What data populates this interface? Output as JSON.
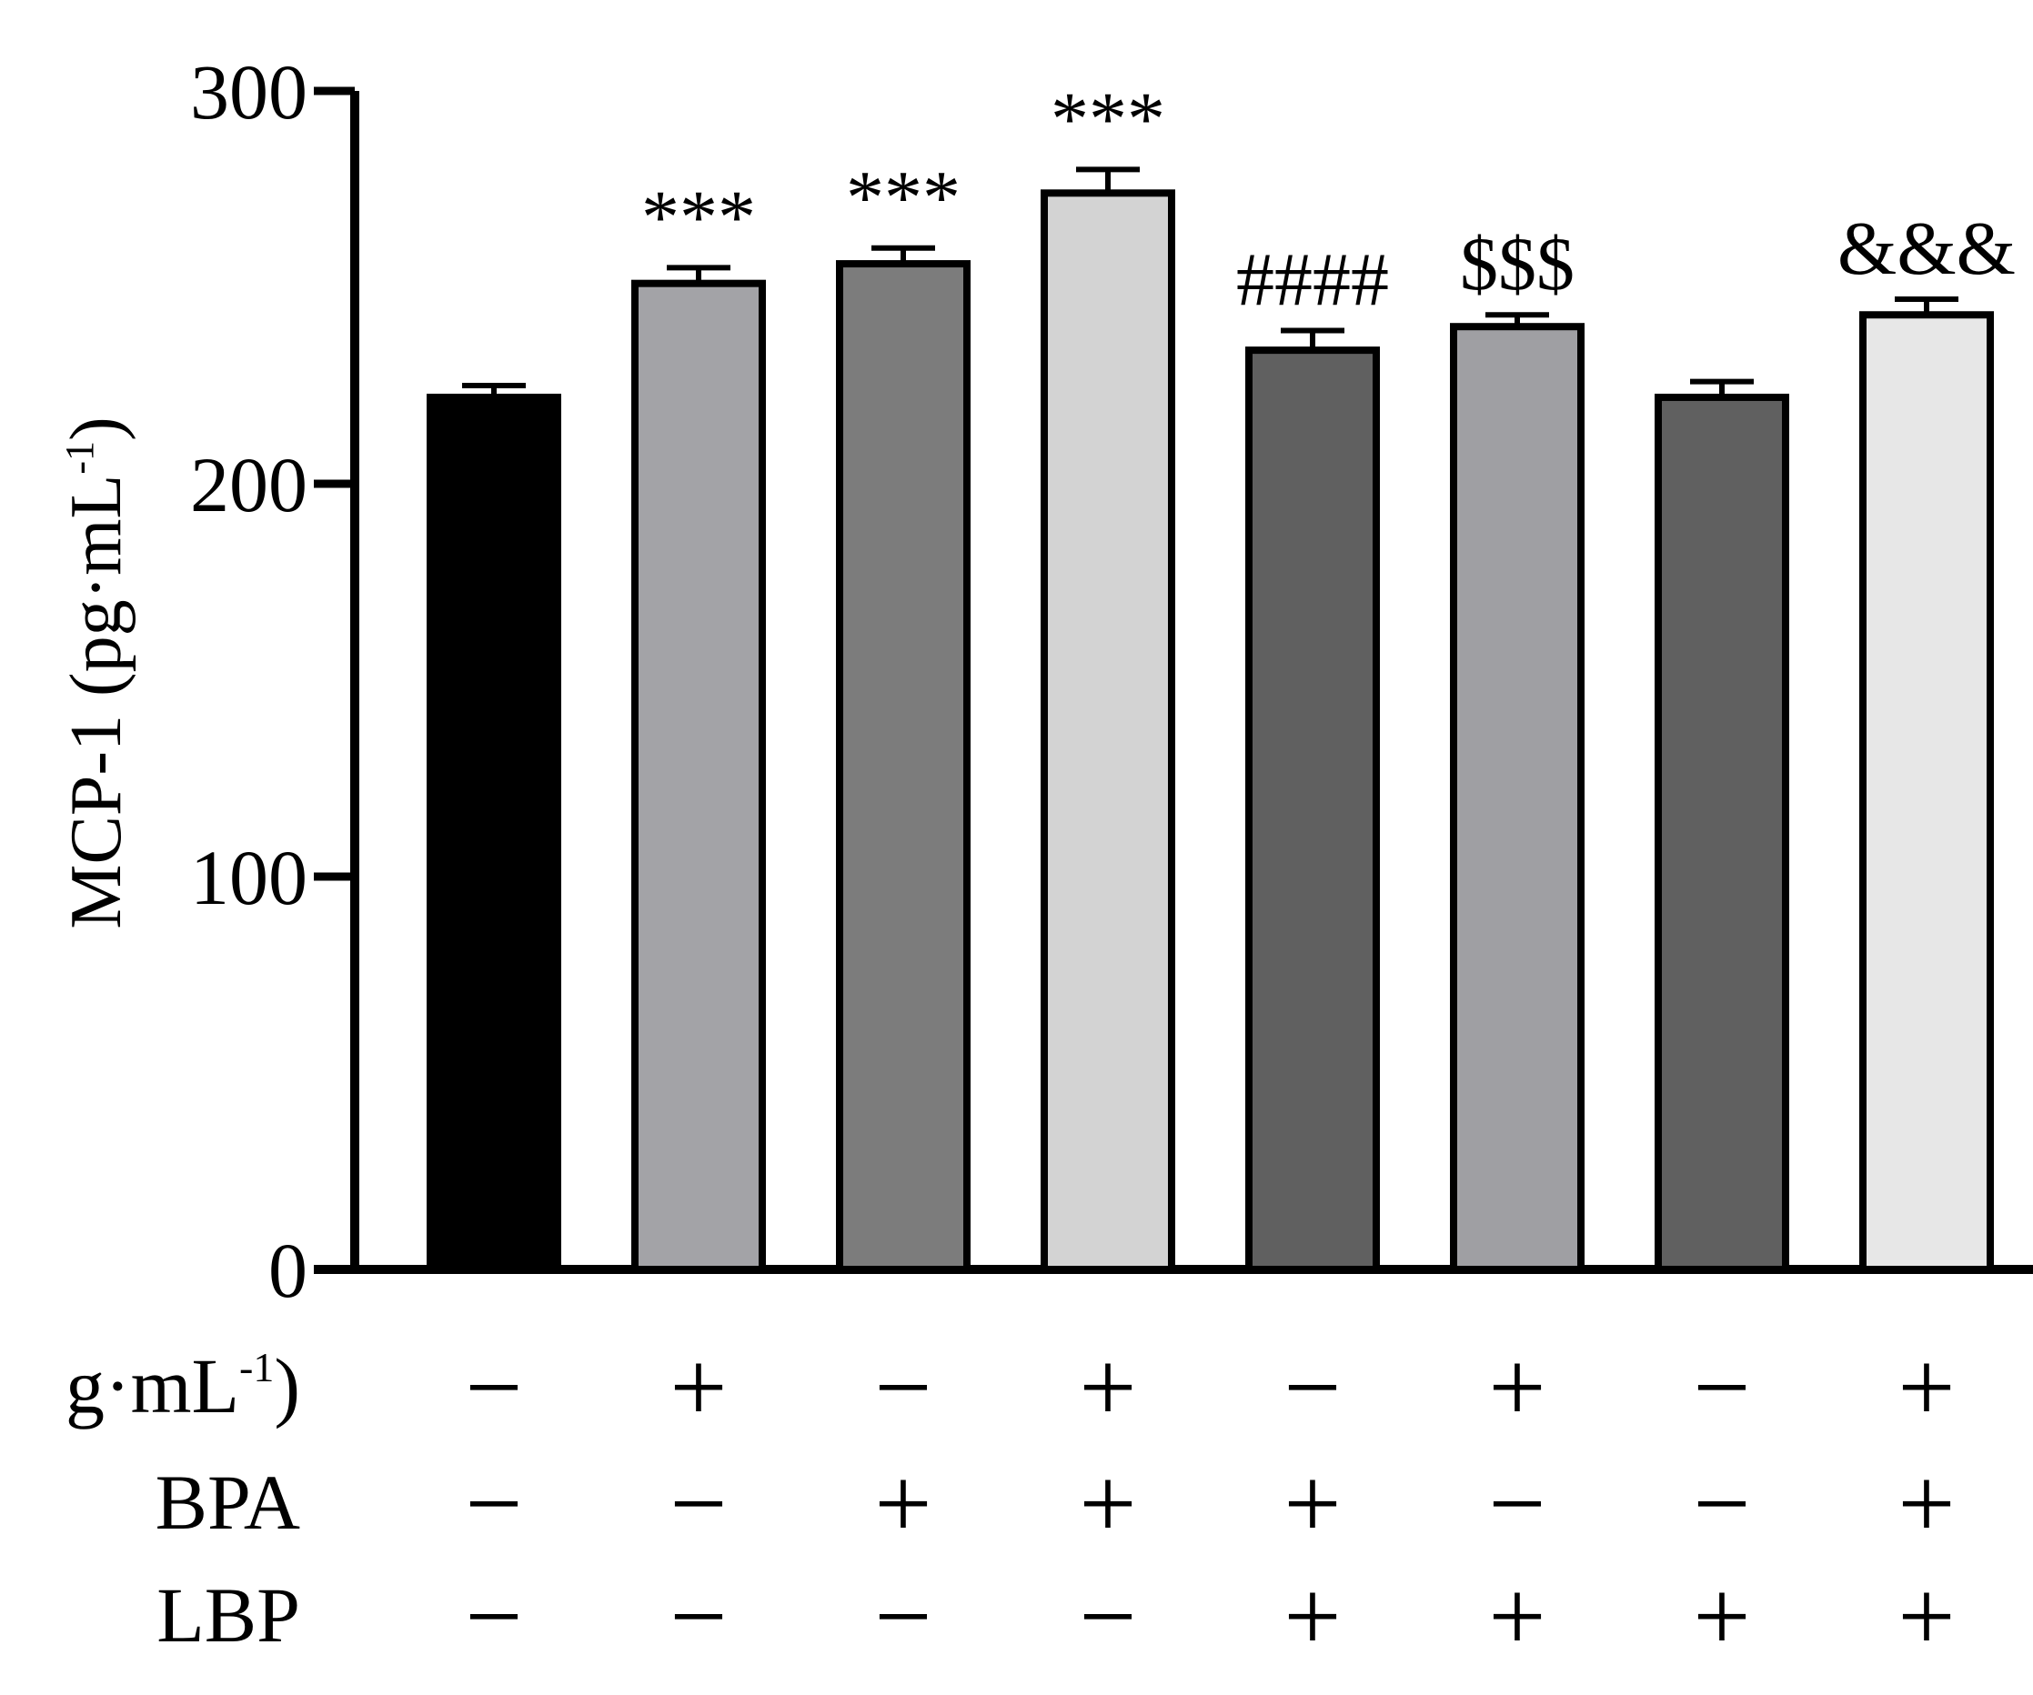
{
  "chart_data": {
    "type": "bar",
    "ylabel": "MCP-1 (pg·mL",
    "ylabel_sup": "-1",
    "ylabel_close": ")",
    "ylim": [
      0,
      300
    ],
    "yticks": [
      0,
      100,
      200,
      300
    ],
    "ytick_labels": [
      "0",
      "100",
      "200",
      "300"
    ],
    "grid": false,
    "legend": "none",
    "values": [
      222,
      251,
      256,
      274,
      234,
      240,
      222,
      243
    ],
    "errors": [
      3,
      4,
      4,
      6,
      5,
      3,
      4,
      4
    ],
    "colors": [
      "#000000",
      "#a3a3a7",
      "#7c7c7c",
      "#d3d3d3",
      "#606060",
      "#9f9fa3",
      "#606060",
      "#e7e7e7"
    ],
    "significance": [
      "",
      "***",
      "***",
      "***",
      "####",
      "$$$",
      "",
      "&&&"
    ],
    "treatment_rows": [
      {
        "label": "g·mL",
        "label_sup": "-1",
        "label_close": ")",
        "signs": [
          "−",
          "+",
          "−",
          "+",
          "−",
          "+",
          "−",
          "+"
        ]
      },
      {
        "label": "BPA",
        "signs": [
          "−",
          "−",
          "+",
          "+",
          "+",
          "−",
          "−",
          "+"
        ]
      },
      {
        "label": "LBP",
        "signs": [
          "−",
          "−",
          "−",
          "−",
          "+",
          "+",
          "+",
          "+"
        ]
      }
    ]
  }
}
